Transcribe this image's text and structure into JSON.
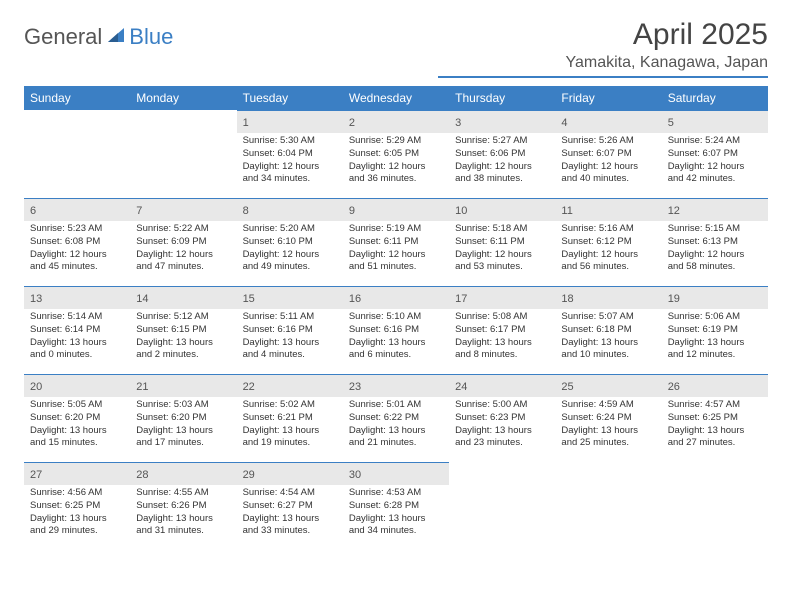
{
  "brand": {
    "text1": "General",
    "text2": "Blue"
  },
  "title": "April 2025",
  "location": "Yamakita, Kanagawa, Japan",
  "colors": {
    "accent": "#3b7fc4",
    "dayHeaderBg": "#e8e8e8",
    "background": "#ffffff",
    "text": "#333333"
  },
  "calendar": {
    "type": "table",
    "columns": [
      "Sunday",
      "Monday",
      "Tuesday",
      "Wednesday",
      "Thursday",
      "Friday",
      "Saturday"
    ],
    "firstDayOffset": 2,
    "daysInMonth": 30,
    "days": [
      {
        "n": 1,
        "sunrise": "5:30 AM",
        "sunset": "6:04 PM",
        "daylight": "12 hours and 34 minutes."
      },
      {
        "n": 2,
        "sunrise": "5:29 AM",
        "sunset": "6:05 PM",
        "daylight": "12 hours and 36 minutes."
      },
      {
        "n": 3,
        "sunrise": "5:27 AM",
        "sunset": "6:06 PM",
        "daylight": "12 hours and 38 minutes."
      },
      {
        "n": 4,
        "sunrise": "5:26 AM",
        "sunset": "6:07 PM",
        "daylight": "12 hours and 40 minutes."
      },
      {
        "n": 5,
        "sunrise": "5:24 AM",
        "sunset": "6:07 PM",
        "daylight": "12 hours and 42 minutes."
      },
      {
        "n": 6,
        "sunrise": "5:23 AM",
        "sunset": "6:08 PM",
        "daylight": "12 hours and 45 minutes."
      },
      {
        "n": 7,
        "sunrise": "5:22 AM",
        "sunset": "6:09 PM",
        "daylight": "12 hours and 47 minutes."
      },
      {
        "n": 8,
        "sunrise": "5:20 AM",
        "sunset": "6:10 PM",
        "daylight": "12 hours and 49 minutes."
      },
      {
        "n": 9,
        "sunrise": "5:19 AM",
        "sunset": "6:11 PM",
        "daylight": "12 hours and 51 minutes."
      },
      {
        "n": 10,
        "sunrise": "5:18 AM",
        "sunset": "6:11 PM",
        "daylight": "12 hours and 53 minutes."
      },
      {
        "n": 11,
        "sunrise": "5:16 AM",
        "sunset": "6:12 PM",
        "daylight": "12 hours and 56 minutes."
      },
      {
        "n": 12,
        "sunrise": "5:15 AM",
        "sunset": "6:13 PM",
        "daylight": "12 hours and 58 minutes."
      },
      {
        "n": 13,
        "sunrise": "5:14 AM",
        "sunset": "6:14 PM",
        "daylight": "13 hours and 0 minutes."
      },
      {
        "n": 14,
        "sunrise": "5:12 AM",
        "sunset": "6:15 PM",
        "daylight": "13 hours and 2 minutes."
      },
      {
        "n": 15,
        "sunrise": "5:11 AM",
        "sunset": "6:16 PM",
        "daylight": "13 hours and 4 minutes."
      },
      {
        "n": 16,
        "sunrise": "5:10 AM",
        "sunset": "6:16 PM",
        "daylight": "13 hours and 6 minutes."
      },
      {
        "n": 17,
        "sunrise": "5:08 AM",
        "sunset": "6:17 PM",
        "daylight": "13 hours and 8 minutes."
      },
      {
        "n": 18,
        "sunrise": "5:07 AM",
        "sunset": "6:18 PM",
        "daylight": "13 hours and 10 minutes."
      },
      {
        "n": 19,
        "sunrise": "5:06 AM",
        "sunset": "6:19 PM",
        "daylight": "13 hours and 12 minutes."
      },
      {
        "n": 20,
        "sunrise": "5:05 AM",
        "sunset": "6:20 PM",
        "daylight": "13 hours and 15 minutes."
      },
      {
        "n": 21,
        "sunrise": "5:03 AM",
        "sunset": "6:20 PM",
        "daylight": "13 hours and 17 minutes."
      },
      {
        "n": 22,
        "sunrise": "5:02 AM",
        "sunset": "6:21 PM",
        "daylight": "13 hours and 19 minutes."
      },
      {
        "n": 23,
        "sunrise": "5:01 AM",
        "sunset": "6:22 PM",
        "daylight": "13 hours and 21 minutes."
      },
      {
        "n": 24,
        "sunrise": "5:00 AM",
        "sunset": "6:23 PM",
        "daylight": "13 hours and 23 minutes."
      },
      {
        "n": 25,
        "sunrise": "4:59 AM",
        "sunset": "6:24 PM",
        "daylight": "13 hours and 25 minutes."
      },
      {
        "n": 26,
        "sunrise": "4:57 AM",
        "sunset": "6:25 PM",
        "daylight": "13 hours and 27 minutes."
      },
      {
        "n": 27,
        "sunrise": "4:56 AM",
        "sunset": "6:25 PM",
        "daylight": "13 hours and 29 minutes."
      },
      {
        "n": 28,
        "sunrise": "4:55 AM",
        "sunset": "6:26 PM",
        "daylight": "13 hours and 31 minutes."
      },
      {
        "n": 29,
        "sunrise": "4:54 AM",
        "sunset": "6:27 PM",
        "daylight": "13 hours and 33 minutes."
      },
      {
        "n": 30,
        "sunrise": "4:53 AM",
        "sunset": "6:28 PM",
        "daylight": "13 hours and 34 minutes."
      }
    ],
    "labels": {
      "sunrisePrefix": "Sunrise: ",
      "sunsetPrefix": "Sunset: ",
      "daylightPrefix": "Daylight: "
    }
  }
}
